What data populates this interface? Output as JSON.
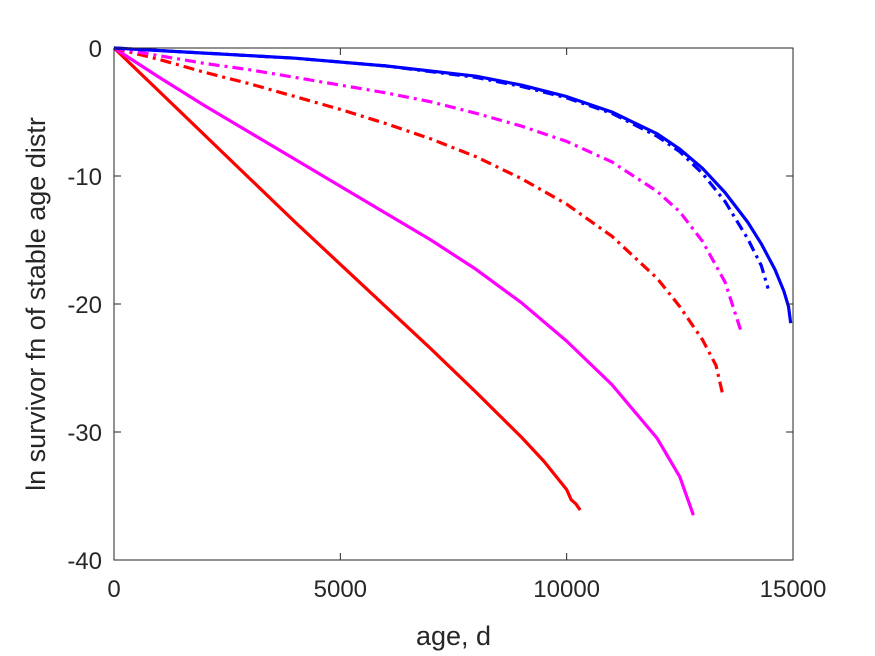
{
  "chart_data": {
    "type": "line",
    "xlabel": "age, d",
    "ylabel": "ln survivor fn of stable age distr",
    "xlim": [
      0,
      15000
    ],
    "ylim": [
      -40,
      0
    ],
    "xticks": [
      0,
      5000,
      10000,
      15000
    ],
    "yticks": [
      0,
      -10,
      -20,
      -30,
      -40
    ],
    "xtick_labels": [
      "0",
      "5000",
      "10000",
      "15000"
    ],
    "ytick_labels": [
      "0",
      "-10",
      "-20",
      "-30",
      "-40"
    ],
    "grid": false,
    "series": [
      {
        "color": "#ff0000",
        "style": "solid",
        "x": [
          0,
          1000,
          2000,
          3000,
          4000,
          5000,
          6000,
          7000,
          8000,
          9000,
          9500,
          10000,
          10100,
          10200,
          10300
        ],
        "y": [
          0,
          -3.4,
          -6.8,
          -10.2,
          -13.6,
          -16.9,
          -20.2,
          -23.5,
          -26.9,
          -30.4,
          -32.3,
          -34.5,
          -35.3,
          -35.6,
          -36.1
        ]
      },
      {
        "color": "#ff00ff",
        "style": "solid",
        "x": [
          0,
          1000,
          2000,
          3000,
          4000,
          5000,
          6000,
          7000,
          8000,
          9000,
          10000,
          11000,
          12000,
          12500,
          12800
        ],
        "y": [
          0,
          -2.3,
          -4.5,
          -6.6,
          -8.7,
          -10.8,
          -12.9,
          -15.0,
          -17.3,
          -19.9,
          -22.9,
          -26.3,
          -30.5,
          -33.5,
          -36.5
        ]
      },
      {
        "color": "#ff0000",
        "style": "dashdot",
        "x": [
          0,
          1000,
          2000,
          3000,
          4000,
          5000,
          6000,
          7000,
          8000,
          9000,
          10000,
          11000,
          12000,
          12500,
          13000,
          13300,
          13450
        ],
        "y": [
          0,
          -0.9,
          -1.9,
          -2.8,
          -3.8,
          -4.8,
          -5.9,
          -7.1,
          -8.5,
          -10.2,
          -12.2,
          -14.7,
          -18.0,
          -20.2,
          -22.8,
          -24.8,
          -27.1
        ]
      },
      {
        "color": "#ff00ff",
        "style": "dashdot",
        "x": [
          0,
          1000,
          2000,
          3000,
          4000,
          5000,
          6000,
          7000,
          8000,
          9000,
          10000,
          11000,
          12000,
          12500,
          13000,
          13500,
          13850
        ],
        "y": [
          0,
          -0.6,
          -1.2,
          -1.7,
          -2.3,
          -2.9,
          -3.5,
          -4.2,
          -5.1,
          -6.1,
          -7.3,
          -8.9,
          -11.2,
          -12.8,
          -15.1,
          -18.3,
          -22.1
        ]
      },
      {
        "color": "#0000ff",
        "style": "dashdot",
        "x": [
          0,
          2000,
          4000,
          6000,
          8000,
          9000,
          10000,
          11000,
          12000,
          12500,
          13000,
          13500,
          14000,
          14300,
          14450
        ],
        "y": [
          0,
          -0.4,
          -0.8,
          -1.4,
          -2.3,
          -3.0,
          -3.9,
          -5.1,
          -6.9,
          -8.1,
          -9.8,
          -12.0,
          -14.9,
          -17.0,
          -18.8
        ]
      },
      {
        "color": "#0000ff",
        "style": "solid",
        "x": [
          0,
          2000,
          4000,
          6000,
          8000,
          9000,
          10000,
          11000,
          12000,
          12500,
          13000,
          13500,
          14000,
          14300,
          14600,
          14800,
          14900,
          14950
        ],
        "y": [
          0,
          -0.4,
          -0.8,
          -1.4,
          -2.2,
          -2.9,
          -3.8,
          -5.0,
          -6.7,
          -7.9,
          -9.4,
          -11.3,
          -13.6,
          -15.3,
          -17.3,
          -19.0,
          -20.2,
          -21.5
        ]
      }
    ]
  }
}
